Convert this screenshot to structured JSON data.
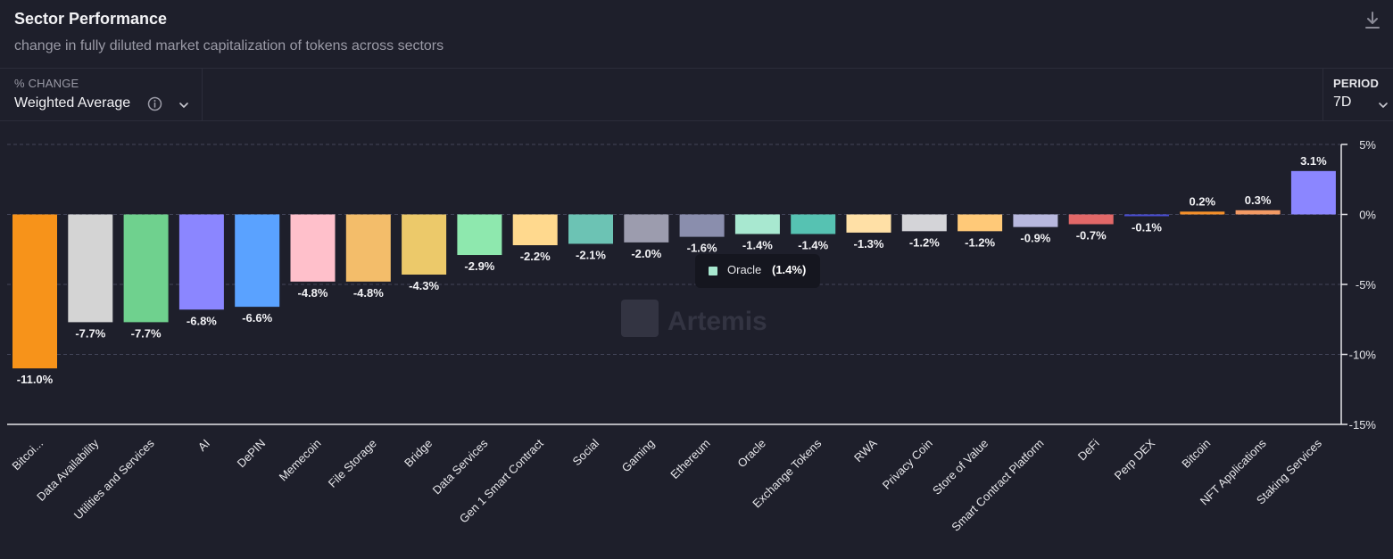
{
  "header": {
    "title": "Sector Performance",
    "subtitle": "change in fully diluted market capitalization of tokens across sectors"
  },
  "controls": {
    "metric_label": "% CHANGE",
    "metric_value": "Weighted Average",
    "period_label": "PERIOD",
    "period_value": "7D"
  },
  "icons": {
    "download": "download-icon",
    "info": "info-icon",
    "chevron": "chevron-down-icon"
  },
  "watermark": "Artemis",
  "tooltip": {
    "name": "Oracle",
    "value": "(1.4%)",
    "color": "#a8e8d0"
  },
  "chart_data": {
    "type": "bar",
    "title": "Sector Performance",
    "categories": [
      "Bitcoi...",
      "Data Availability",
      "Utilities and Services",
      "AI",
      "DePIN",
      "Memecoin",
      "File Storage",
      "Bridge",
      "Data Services",
      "Gen 1 Smart Contract",
      "Social",
      "Gaming",
      "Ethereum",
      "Oracle",
      "Exchange Tokens",
      "RWA",
      "Privacy Coin",
      "Store of Value",
      "Smart Contract Platform",
      "DeFi",
      "Perp DEX",
      "Bitcoin",
      "NFT Applications",
      "Staking Services"
    ],
    "values": [
      -11.0,
      -7.7,
      -7.7,
      -6.8,
      -6.6,
      -4.8,
      -4.8,
      -4.3,
      -2.9,
      -2.2,
      -2.1,
      -2.0,
      -1.6,
      -1.4,
      -1.4,
      -1.3,
      -1.2,
      -1.2,
      -0.9,
      -0.7,
      -0.1,
      0.2,
      0.3,
      3.1
    ],
    "value_labels": [
      "-11.0%",
      "-7.7%",
      "-7.7%",
      "-6.8%",
      "-6.6%",
      "-4.8%",
      "-4.8%",
      "-4.3%",
      "-2.9%",
      "-2.2%",
      "-2.1%",
      "-2.0%",
      "-1.6%",
      "-1.4%",
      "-1.4%",
      "-1.3%",
      "-1.2%",
      "-1.2%",
      "-0.9%",
      "-0.7%",
      "-0.1%",
      "0.2%",
      "0.3%",
      "3.1%"
    ],
    "colors": [
      "#f7931a",
      "#d4d4d4",
      "#6fd18e",
      "#8b86ff",
      "#5aa2ff",
      "#ffc0cb",
      "#f3bd6a",
      "#ecc96a",
      "#8ee8ae",
      "#ffd98e",
      "#6cc3b4",
      "#9c9cae",
      "#8a8ead",
      "#a8e8d0",
      "#56c2b2",
      "#ffe0a6",
      "#d4d4d8",
      "#ffc978",
      "#b8b8de",
      "#e26868",
      "#4a4ed6",
      "#f5902a",
      "#f39a64",
      "#8b86ff"
    ],
    "ylim": [
      -15,
      5
    ],
    "yticks": [
      5,
      0,
      -5,
      -10,
      -15
    ],
    "ytick_labels": [
      "5%",
      "0%",
      "-5%",
      "-10%",
      "-15%"
    ],
    "grid": true,
    "axis_position": "right"
  }
}
